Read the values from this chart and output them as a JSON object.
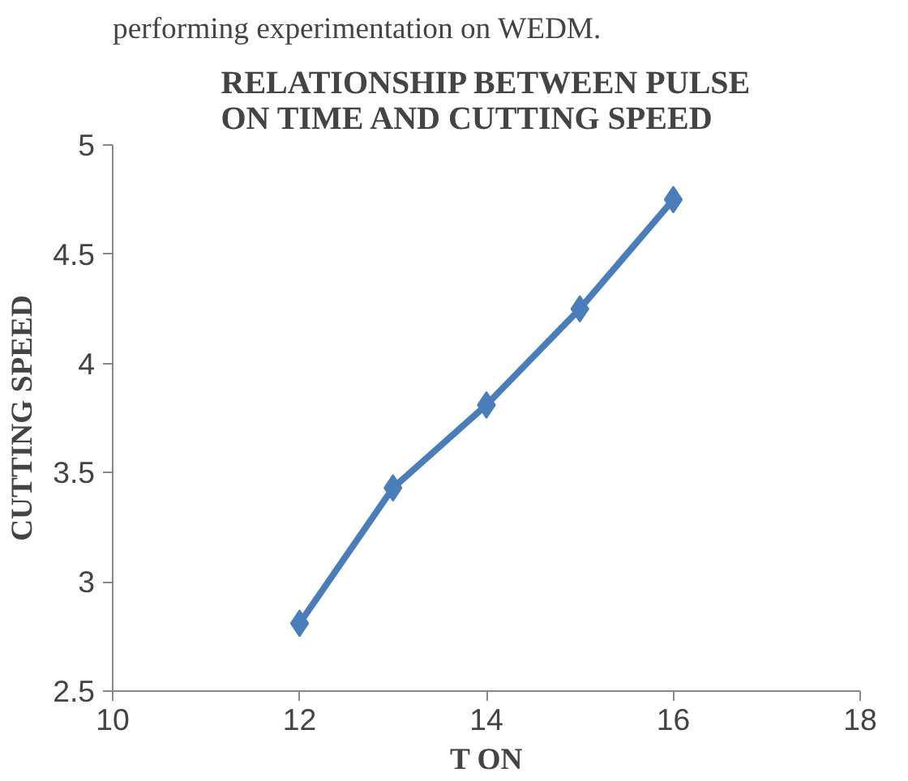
{
  "chart_data": {
    "type": "line",
    "title": "RELATIONSHIP BETWEEN PULSE\nON TIME AND CUTTING SPEED",
    "xlabel": "T ON",
    "ylabel": "CUTTING SPEED",
    "annotations": [
      "performing experimentation on WEDM."
    ],
    "x": [
      12,
      13,
      14,
      15,
      16
    ],
    "series": [
      {
        "color": "#4a7ebb",
        "values": [
          2.81,
          3.43,
          3.81,
          4.25,
          4.75
        ]
      }
    ],
    "xlim": [
      10,
      18
    ],
    "xticks": [
      10,
      12,
      14,
      16,
      18
    ],
    "ylim": [
      2.5,
      5
    ],
    "yticks": [
      2.5,
      3,
      3.5,
      4,
      4.5,
      5
    ],
    "marker": "diamond",
    "line_style": "solid"
  }
}
